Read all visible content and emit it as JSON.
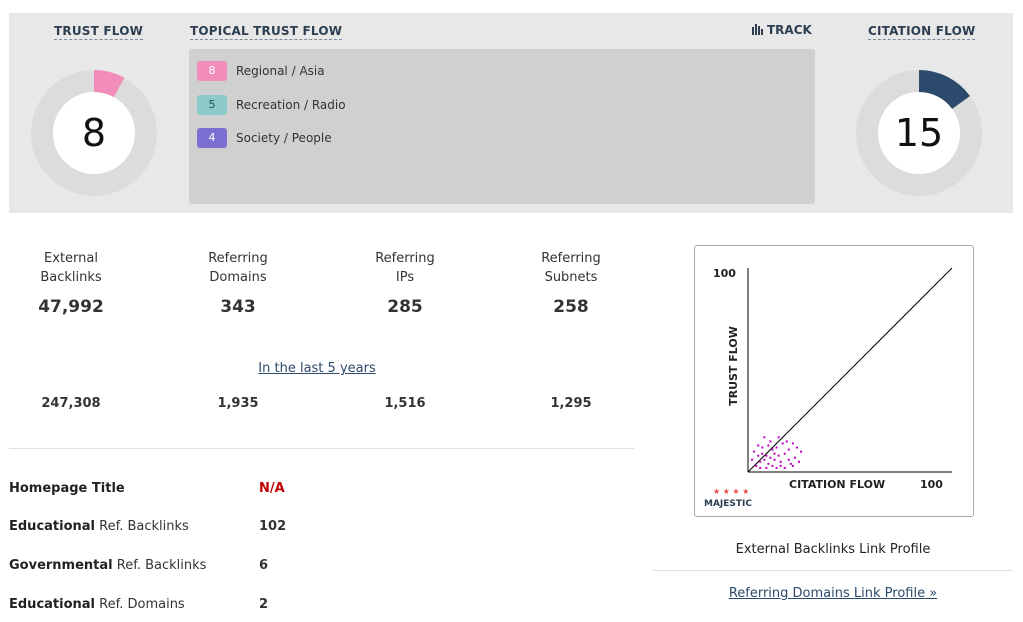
{
  "header": {
    "trust_flow_label": "TRUST FLOW",
    "topical_trust_flow_label": "TOPICAL TRUST FLOW",
    "track_label": "TRACK",
    "citation_flow_label": "CITATION FLOW"
  },
  "trust_flow": {
    "value": "8",
    "fraction": 0.08,
    "color": "#f28cbb"
  },
  "citation_flow": {
    "value": "15",
    "fraction": 0.15,
    "color": "#2c4a6b"
  },
  "topical_trust_flow": [
    {
      "score": "8",
      "label": "Regional / Asia",
      "color": "#f28cbb"
    },
    {
      "score": "5",
      "label": "Recreation / Radio",
      "color": "#8cc9c9"
    },
    {
      "score": "4",
      "label": "Society / People",
      "color": "#7b6fd1"
    }
  ],
  "stats": [
    {
      "label_line1": "External",
      "label_line2": "Backlinks",
      "value": "47,992",
      "last5": "247,308"
    },
    {
      "label_line1": "Referring",
      "label_line2": "Domains",
      "value": "343",
      "last5": "1,935"
    },
    {
      "label_line1": "Referring",
      "label_line2": "IPs",
      "value": "285",
      "last5": "1,516"
    },
    {
      "label_line1": "Referring",
      "label_line2": "Subnets",
      "value": "258",
      "last5": "1,295"
    }
  ],
  "last5_link": "In the last 5 years",
  "info": {
    "homepage_title_label": "Homepage Title",
    "homepage_title_value": "N/A",
    "edu_backlinks_bold": "Educational",
    "edu_backlinks_rest": " Ref. Backlinks",
    "edu_backlinks_value": "102",
    "gov_backlinks_bold": "Governmental",
    "gov_backlinks_rest": " Ref. Backlinks",
    "gov_backlinks_value": "6",
    "edu_domains_bold": "Educational",
    "edu_domains_rest": " Ref. Domains",
    "edu_domains_value": "2"
  },
  "chart_data": {
    "type": "scatter",
    "xlabel": "CITATION FLOW",
    "ylabel": "TRUST FLOW",
    "xlim": [
      0,
      100
    ],
    "ylim": [
      0,
      100
    ],
    "x_max_label": "100",
    "y_max_label": "100",
    "logo_text": "MAJESTIC",
    "points": [
      [
        5,
        13
      ],
      [
        3,
        10
      ],
      [
        7,
        9
      ],
      [
        9,
        8
      ],
      [
        12,
        11
      ],
      [
        14,
        12
      ],
      [
        17,
        14
      ],
      [
        19,
        15
      ],
      [
        6,
        5
      ],
      [
        8,
        6
      ],
      [
        10,
        4
      ],
      [
        11,
        7
      ],
      [
        13,
        6
      ],
      [
        15,
        8
      ],
      [
        16,
        5
      ],
      [
        18,
        9
      ],
      [
        20,
        6
      ],
      [
        22,
        3
      ],
      [
        4,
        3
      ],
      [
        6,
        2
      ],
      [
        9,
        2
      ],
      [
        12,
        3
      ],
      [
        14,
        2
      ],
      [
        16,
        3
      ],
      [
        18,
        2
      ],
      [
        21,
        4
      ],
      [
        23,
        7
      ],
      [
        25,
        5
      ],
      [
        7,
        12
      ],
      [
        10,
        13
      ],
      [
        13,
        9
      ],
      [
        2,
        6
      ],
      [
        20,
        11
      ],
      [
        22,
        14
      ],
      [
        24,
        12
      ],
      [
        26,
        10
      ],
      [
        11,
        15
      ],
      [
        15,
        17
      ],
      [
        8,
        17
      ],
      [
        5,
        8
      ]
    ],
    "point_color": "#c000c0",
    "caption": "External Backlinks Link Profile"
  },
  "ref_domains_link": "Referring Domains Link Profile »"
}
